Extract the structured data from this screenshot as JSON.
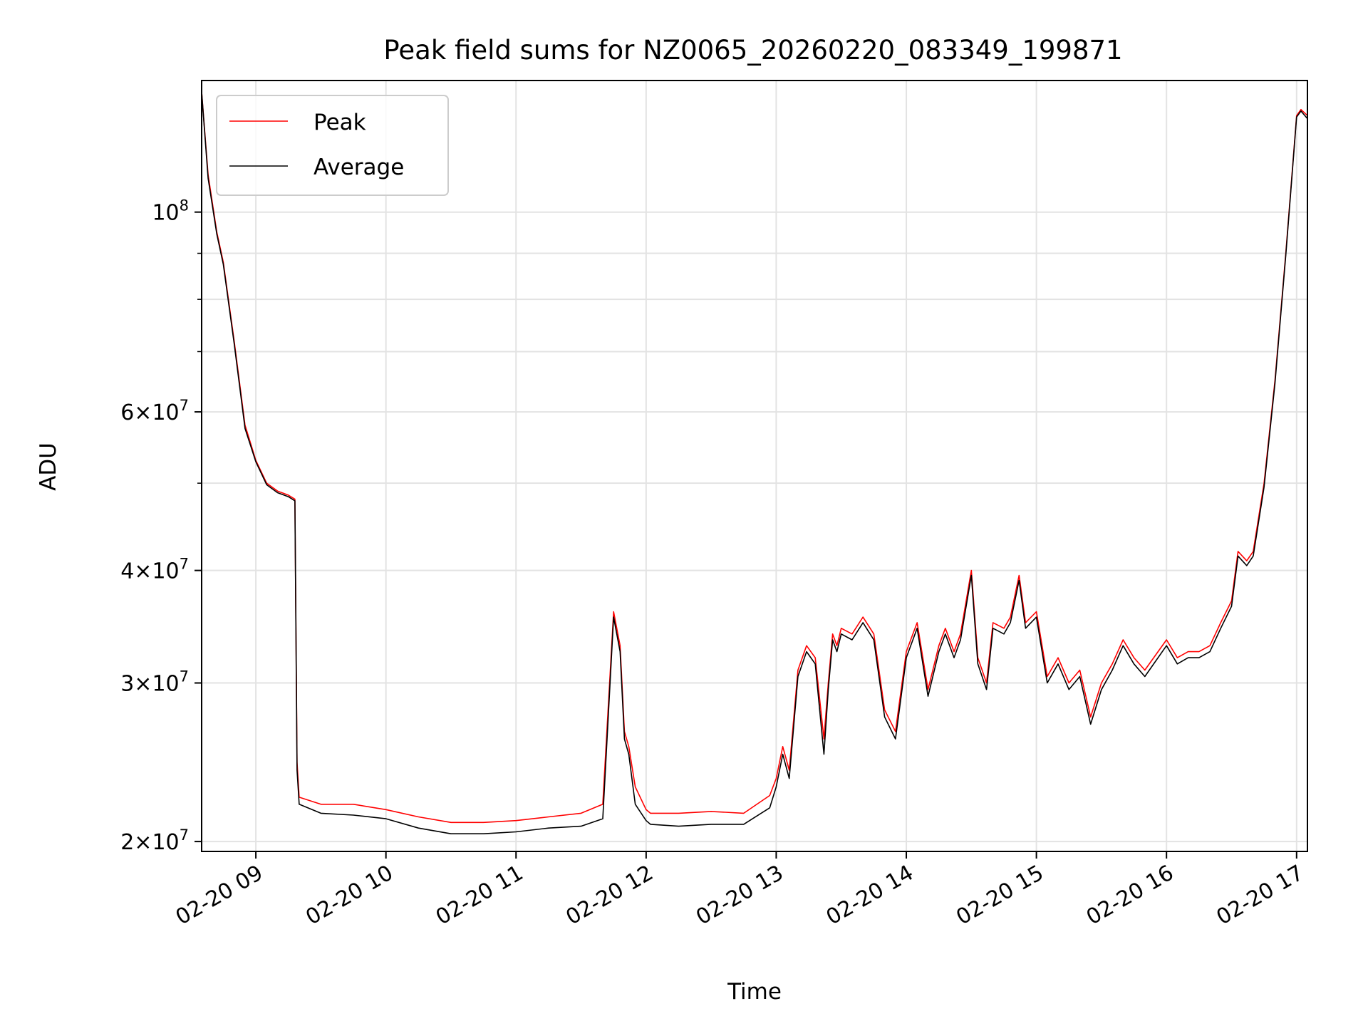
{
  "chart_data": {
    "type": "line",
    "title": "Peak field sums for NZ0065_20260220_083349_199871",
    "xlabel": "Time",
    "ylabel": "ADU",
    "yscale": "log",
    "ylim": [
      19500000,
      140000000
    ],
    "xlim": [
      "02-20 08:35",
      "02-20 17:05"
    ],
    "grid": true,
    "legend_position": "upper-left",
    "x_ticks": [
      "02-20 09",
      "02-20 10",
      "02-20 11",
      "02-20 12",
      "02-20 13",
      "02-20 14",
      "02-20 15",
      "02-20 16",
      "02-20 17"
    ],
    "y_ticks": [
      {
        "mantissa": "",
        "base": "10",
        "exp": "8",
        "value": 100000000
      },
      {
        "mantissa": "6",
        "base": "10",
        "exp": "7",
        "value": 60000000
      },
      {
        "mantissa": "4",
        "base": "10",
        "exp": "7",
        "value": 40000000
      },
      {
        "mantissa": "3",
        "base": "10",
        "exp": "7",
        "value": 30000000
      },
      {
        "mantissa": "2",
        "base": "10",
        "exp": "7",
        "value": 20000000
      }
    ],
    "x": [
      "08:35",
      "08:38",
      "08:42",
      "08:45",
      "08:50",
      "08:55",
      "09:00",
      "09:05",
      "09:10",
      "09:15",
      "09:18",
      "09:19",
      "09:20",
      "09:30",
      "09:45",
      "10:00",
      "10:15",
      "10:30",
      "10:45",
      "11:00",
      "11:15",
      "11:30",
      "11:40",
      "11:45",
      "11:48",
      "11:50",
      "11:52",
      "11:55",
      "12:00",
      "12:02",
      "12:15",
      "12:30",
      "12:45",
      "12:57",
      "13:00",
      "13:03",
      "13:06",
      "13:10",
      "13:14",
      "13:18",
      "13:22",
      "13:24",
      "13:26",
      "13:28",
      "13:30",
      "13:35",
      "13:40",
      "13:45",
      "13:50",
      "13:55",
      "14:00",
      "14:05",
      "14:10",
      "14:15",
      "14:18",
      "14:22",
      "14:25",
      "14:30",
      "14:33",
      "14:37",
      "14:40",
      "14:45",
      "14:48",
      "14:52",
      "14:55",
      "15:00",
      "15:05",
      "15:10",
      "15:15",
      "15:20",
      "15:25",
      "15:30",
      "15:35",
      "15:40",
      "15:45",
      "15:50",
      "16:00",
      "16:05",
      "16:10",
      "16:15",
      "16:20",
      "16:25",
      "16:30",
      "16:33",
      "16:37",
      "16:40",
      "16:45",
      "16:50",
      "16:55",
      "17:00",
      "17:02",
      "17:05"
    ],
    "series": [
      {
        "name": "Peak",
        "color": "#ff0000",
        "values": [
          136000000,
          110000000,
          95000000,
          88000000,
          72000000,
          58000000,
          53000000,
          50000000,
          49000000,
          48500000,
          48000000,
          24500000,
          22400000,
          22000000,
          22000000,
          21700000,
          21300000,
          21000000,
          21000000,
          21100000,
          21300000,
          21500000,
          22000000,
          36000000,
          33000000,
          26500000,
          25500000,
          23000000,
          21700000,
          21500000,
          21500000,
          21600000,
          21500000,
          22500000,
          23500000,
          25500000,
          24000000,
          31000000,
          33000000,
          32000000,
          26000000,
          30000000,
          34000000,
          33000000,
          34500000,
          34000000,
          35500000,
          34000000,
          28000000,
          26500000,
          32500000,
          35000000,
          29500000,
          33000000,
          34500000,
          32500000,
          34000000,
          40000000,
          32000000,
          30000000,
          35000000,
          34500000,
          35500000,
          39500000,
          35000000,
          36000000,
          30500000,
          32000000,
          30000000,
          31000000,
          27500000,
          30000000,
          31500000,
          33500000,
          32000000,
          31000000,
          33500000,
          32000000,
          32500000,
          32500000,
          33000000,
          35000000,
          37000000,
          42000000,
          41000000,
          42000000,
          50000000,
          65000000,
          90000000,
          128000000,
          130000000,
          128000000
        ]
      },
      {
        "name": "Average",
        "color": "#000000",
        "values": [
          136000000,
          109000000,
          94500000,
          87500000,
          71500000,
          57500000,
          52800000,
          49800000,
          48800000,
          48300000,
          47800000,
          24000000,
          22000000,
          21500000,
          21400000,
          21200000,
          20700000,
          20400000,
          20400000,
          20500000,
          20700000,
          20800000,
          21200000,
          35500000,
          32500000,
          26000000,
          25000000,
          22000000,
          21100000,
          20900000,
          20800000,
          20900000,
          20900000,
          21800000,
          23000000,
          25000000,
          23500000,
          30500000,
          32500000,
          31500000,
          25000000,
          29500000,
          33500000,
          32500000,
          34000000,
          33500000,
          35000000,
          33500000,
          27500000,
          26000000,
          32000000,
          34500000,
          29000000,
          32500000,
          34000000,
          32000000,
          33500000,
          39500000,
          31500000,
          29500000,
          34500000,
          34000000,
          35000000,
          39000000,
          34500000,
          35500000,
          30000000,
          31500000,
          29500000,
          30500000,
          27000000,
          29500000,
          31000000,
          33000000,
          31500000,
          30500000,
          33000000,
          31500000,
          32000000,
          32000000,
          32500000,
          34500000,
          36500000,
          41500000,
          40500000,
          41500000,
          49500000,
          64500000,
          89500000,
          127500000,
          129500000,
          127000000
        ]
      }
    ]
  }
}
